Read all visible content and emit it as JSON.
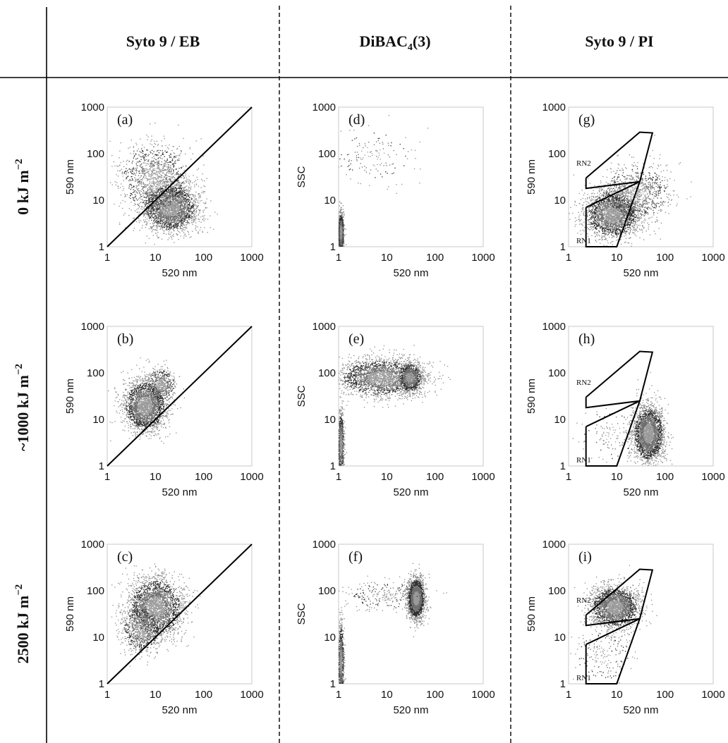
{
  "columns": [
    {
      "id": "c1",
      "main": "Syto 9 / EB",
      "sub": "",
      "post": ""
    },
    {
      "id": "c2",
      "main": "DiBAC",
      "sub": "4",
      "post": "(3)"
    },
    {
      "id": "c3",
      "main": "Syto 9 / PI",
      "sub": "",
      "post": ""
    }
  ],
  "rows": [
    {
      "id": "r1",
      "main": "0 kJ m",
      "sup": "−2"
    },
    {
      "id": "r2",
      "main": "~1000 kJ m",
      "sup": "−2"
    },
    {
      "id": "r3",
      "main": "2500 kJ m",
      "sup": "−2"
    }
  ],
  "axis_ticks": [
    "1",
    "10",
    "100",
    "1000"
  ],
  "chart_data": [
    {
      "id": "a",
      "label": "(a)",
      "type": "scatter",
      "scale": "log",
      "xlabel": "520 nm",
      "ylabel": "590 nm",
      "xlim": [
        1,
        1000
      ],
      "ylim": [
        1,
        1000
      ],
      "diagonal": [
        [
          1,
          1
        ],
        [
          1000,
          1000
        ]
      ],
      "clusters": [
        {
          "center": [
            20,
            7
          ],
          "spread_decades": [
            0.28,
            0.26
          ],
          "n": 2600
        },
        {
          "center": [
            9,
            30
          ],
          "spread_decades": [
            0.35,
            0.38
          ],
          "n": 1200
        }
      ],
      "gates": []
    },
    {
      "id": "b",
      "label": "(b)",
      "type": "scatter",
      "scale": "log",
      "xlabel": "520 nm",
      "ylabel": "590 nm",
      "xlim": [
        1,
        1000
      ],
      "ylim": [
        1,
        1000
      ],
      "diagonal": [
        [
          1,
          1
        ],
        [
          1000,
          1000
        ]
      ],
      "clusters": [
        {
          "center": [
            6,
            20
          ],
          "spread_decades": [
            0.22,
            0.28
          ],
          "n": 2400
        },
        {
          "center": [
            13,
            55
          ],
          "spread_decades": [
            0.15,
            0.18
          ],
          "n": 500
        }
      ],
      "gates": []
    },
    {
      "id": "c",
      "label": "(c)",
      "type": "scatter",
      "scale": "log",
      "xlabel": "520 nm",
      "ylabel": "590 nm",
      "xlim": [
        1,
        1000
      ],
      "ylim": [
        1,
        1000
      ],
      "diagonal": [
        [
          1,
          1
        ],
        [
          1000,
          1000
        ]
      ],
      "clusters": [
        {
          "center": [
            10,
            45
          ],
          "spread_decades": [
            0.28,
            0.32
          ],
          "n": 2600
        },
        {
          "center": [
            5,
            15
          ],
          "spread_decades": [
            0.2,
            0.25
          ],
          "n": 700
        }
      ],
      "gates": []
    },
    {
      "id": "d",
      "label": "(d)",
      "type": "scatter",
      "scale": "log",
      "xlabel": "520 nm",
      "ylabel": "SSC",
      "xlim": [
        1,
        1000
      ],
      "ylim": [
        1,
        1000
      ],
      "diagonal": null,
      "clusters": [
        {
          "center": [
            1.1,
            2
          ],
          "spread_decades": [
            0.03,
            0.22
          ],
          "n": 1000
        },
        {
          "center": [
            5,
            90
          ],
          "spread_decades": [
            0.4,
            0.3
          ],
          "n": 150
        }
      ],
      "gates": []
    },
    {
      "id": "e",
      "label": "(e)",
      "type": "scatter",
      "scale": "log",
      "xlabel": "520 nm",
      "ylabel": "SSC",
      "xlim": [
        1,
        1000
      ],
      "ylim": [
        1,
        1000
      ],
      "diagonal": null,
      "clusters": [
        {
          "center": [
            1.1,
            3
          ],
          "spread_decades": [
            0.03,
            0.35
          ],
          "n": 700
        },
        {
          "center": [
            8,
            80
          ],
          "spread_decades": [
            0.45,
            0.2
          ],
          "n": 2400
        },
        {
          "center": [
            30,
            80
          ],
          "spread_decades": [
            0.12,
            0.16
          ],
          "n": 900
        }
      ],
      "gates": []
    },
    {
      "id": "f",
      "label": "(f)",
      "type": "scatter",
      "scale": "log",
      "xlabel": "520 nm",
      "ylabel": "SSC",
      "xlim": [
        1,
        1000
      ],
      "ylim": [
        1,
        1000
      ],
      "diagonal": null,
      "clusters": [
        {
          "center": [
            1.1,
            3
          ],
          "spread_decades": [
            0.03,
            0.4
          ],
          "n": 900
        },
        {
          "center": [
            40,
            70
          ],
          "spread_decades": [
            0.09,
            0.22
          ],
          "n": 2200
        },
        {
          "center": [
            10,
            80
          ],
          "spread_decades": [
            0.4,
            0.15
          ],
          "n": 250
        }
      ],
      "gates": []
    },
    {
      "id": "g",
      "label": "(g)",
      "type": "scatter",
      "scale": "log",
      "xlabel": "520 nm",
      "ylabel": "590 nm",
      "xlim": [
        1,
        1000
      ],
      "ylim": [
        1,
        1000
      ],
      "diagonal": null,
      "clusters": [
        {
          "center": [
            8,
            5
          ],
          "spread_decades": [
            0.28,
            0.25
          ],
          "n": 2400
        },
        {
          "center": [
            25,
            15
          ],
          "spread_decades": [
            0.35,
            0.3
          ],
          "n": 900
        }
      ],
      "gates": [
        {
          "name": "RN2",
          "points": [
            [
              2.3,
              30
            ],
            [
              2.3,
              18
            ],
            [
              30,
              25
            ],
            [
              55,
              280
            ],
            [
              30,
              290
            ],
            [
              2.3,
              30
            ]
          ]
        },
        {
          "name": "RN1",
          "points": [
            [
              2.3,
              7
            ],
            [
              30,
              25
            ],
            [
              10,
              1
            ],
            [
              2.3,
              1
            ],
            [
              2.3,
              7
            ]
          ]
        }
      ]
    },
    {
      "id": "h",
      "label": "(h)",
      "type": "scatter",
      "scale": "log",
      "xlabel": "520 nm",
      "ylabel": "590 nm",
      "xlim": [
        1,
        1000
      ],
      "ylim": [
        1,
        1000
      ],
      "diagonal": null,
      "clusters": [
        {
          "center": [
            45,
            5
          ],
          "spread_decades": [
            0.16,
            0.3
          ],
          "n": 2600
        },
        {
          "center": [
            8,
            5
          ],
          "spread_decades": [
            0.35,
            0.3
          ],
          "n": 120
        }
      ],
      "gates": [
        {
          "name": "RN2",
          "points": [
            [
              2.3,
              30
            ],
            [
              2.3,
              18
            ],
            [
              30,
              25
            ],
            [
              55,
              280
            ],
            [
              30,
              290
            ],
            [
              2.3,
              30
            ]
          ]
        },
        {
          "name": "RN1",
          "points": [
            [
              2.3,
              7
            ],
            [
              30,
              25
            ],
            [
              10,
              1
            ],
            [
              2.3,
              1
            ],
            [
              2.3,
              7
            ]
          ]
        }
      ]
    },
    {
      "id": "i",
      "label": "(i)",
      "type": "scatter",
      "scale": "log",
      "xlabel": "520 nm",
      "ylabel": "590 nm",
      "xlim": [
        1,
        1000
      ],
      "ylim": [
        1,
        1000
      ],
      "diagonal": null,
      "clusters": [
        {
          "center": [
            9,
            45
          ],
          "spread_decades": [
            0.25,
            0.22
          ],
          "n": 2400
        },
        {
          "center": [
            5,
            4
          ],
          "spread_decades": [
            0.3,
            0.3
          ],
          "n": 180
        }
      ],
      "gates": [
        {
          "name": "RN2",
          "points": [
            [
              2.3,
              30
            ],
            [
              2.3,
              18
            ],
            [
              30,
              25
            ],
            [
              55,
              280
            ],
            [
              30,
              290
            ],
            [
              2.3,
              30
            ]
          ]
        },
        {
          "name": "RN1",
          "points": [
            [
              2.3,
              7
            ],
            [
              30,
              25
            ],
            [
              10,
              1
            ],
            [
              2.3,
              1
            ],
            [
              2.3,
              7
            ]
          ]
        }
      ]
    }
  ]
}
